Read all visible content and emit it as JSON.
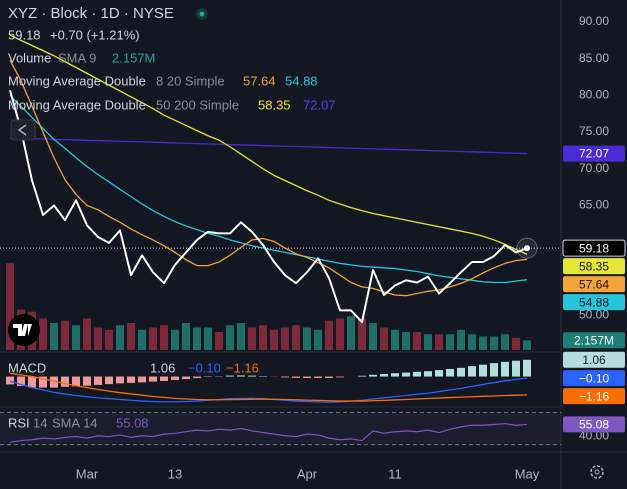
{
  "chart_data": [
    {
      "type": "line",
      "title": "XYZ · Block · 1D · NYSE",
      "change": "+0.70 (+1.21%)",
      "categories": [
        null,
        null,
        null,
        null,
        null,
        null,
        null,
        "Mar",
        null,
        null,
        null,
        null,
        null,
        null,
        null,
        "13",
        null,
        null,
        null,
        null,
        null,
        null,
        null,
        null,
        null,
        null,
        null,
        "Apr",
        null,
        null,
        null,
        null,
        null,
        null,
        null,
        "11",
        null,
        null,
        null,
        null,
        null,
        null,
        null,
        null,
        null,
        null,
        null,
        "May"
      ],
      "ylim": [
        45.3,
        93
      ],
      "yticks": [
        {
          "value": 50,
          "label": "50.00"
        },
        {
          "value": 65,
          "label": "65.00"
        },
        {
          "value": 70,
          "label": "70.00"
        },
        {
          "value": 75,
          "label": "75.00"
        },
        {
          "value": 80,
          "label": "80.00"
        },
        {
          "value": 85,
          "label": "85.00"
        },
        {
          "value": 90,
          "label": "90.00"
        }
      ],
      "grid": false,
      "legends": [
        {
          "name": "Moving Average Double",
          "params": "8 20 Simple"
        },
        {
          "name": "Moving Average Double",
          "params": "50 200 Simple"
        }
      ],
      "series": [
        {
          "color": "#ffffff",
          "values": [
            80.7,
            75.3,
            68.4,
            63.7,
            65.0,
            63.0,
            65.7,
            62.3,
            60.7,
            59.9,
            61.6,
            55.5,
            58.2,
            55.9,
            54.4,
            56.9,
            58.6,
            60.3,
            61.4,
            61.2,
            61.2,
            62.7,
            61.4,
            59.6,
            57.3,
            55.5,
            54.4,
            55.9,
            57.8,
            55.1,
            50.7,
            50.7,
            49.1,
            56.2,
            52.8,
            54.1,
            54.8,
            54.5,
            55.3,
            53.0,
            54.4,
            55.9,
            57.3,
            57.3,
            58.1,
            59.6,
            58.6,
            59.18
          ]
        },
        {
          "color": "#f2a33a",
          "values": [
            84.8,
            82,
            78.5,
            75,
            71.5,
            68.5,
            66.5,
            65,
            64.4,
            63.5,
            62.7,
            61.8,
            61,
            60.3,
            59.5,
            58.6,
            57.6,
            56.8,
            56.8,
            57.3,
            58.2,
            59.3,
            60.3,
            60.5,
            60.1,
            59.2,
            58.4,
            57.9,
            57.2,
            56.5,
            55.5,
            54.5,
            53.9,
            53.7,
            53.2,
            52.8,
            52.7,
            53,
            53.3,
            53.5,
            53.9,
            54.4,
            55,
            55.8,
            56.5,
            57.1,
            57.5,
            57.64
          ]
        },
        {
          "color": "#26c6da",
          "values": [
            80,
            78.5,
            77,
            75.5,
            74,
            72.8,
            71.5,
            70.3,
            69.2,
            68.2,
            67.2,
            66.2,
            65.2,
            64.3,
            63.5,
            62.8,
            62.2,
            61.7,
            61.2,
            60.8,
            60.3,
            59.9,
            59.5,
            59.2,
            58.9,
            58.6,
            58.3,
            58,
            57.7,
            57.4,
            57.1,
            56.9,
            56.7,
            56.6,
            56.5,
            56.4,
            56.2,
            56,
            55.7,
            55.4,
            55.2,
            55,
            54.8,
            54.6,
            54.5,
            54.5,
            54.7,
            54.88
          ]
        },
        {
          "color": "#e6e63a",
          "values": [
            88.2,
            87.5,
            86.8,
            86.1,
            85.4,
            84.6,
            83.8,
            83,
            82.2,
            81.4,
            80.6,
            79.8,
            79,
            78.2,
            77.3,
            76.6,
            75.9,
            75.2,
            74.5,
            73.9,
            73,
            72,
            71,
            70,
            69.1,
            68.4,
            67.7,
            67,
            66.4,
            65.7,
            65.2,
            64.7,
            64.3,
            63.9,
            63.6,
            63.3,
            63,
            62.7,
            62.4,
            62.1,
            61.8,
            61.5,
            61.2,
            60.8,
            60.3,
            59.7,
            59,
            58.35
          ]
        },
        {
          "color": "#4a2bd6",
          "values": [
            74.2,
            74.15,
            74.11,
            74.06,
            74.02,
            73.97,
            73.93,
            73.88,
            73.84,
            73.79,
            73.75,
            73.7,
            73.66,
            73.61,
            73.57,
            73.52,
            73.48,
            73.43,
            73.39,
            73.34,
            73.3,
            73.25,
            73.21,
            73.16,
            73.12,
            73.07,
            73.03,
            72.98,
            72.94,
            72.89,
            72.85,
            72.8,
            72.76,
            72.71,
            72.67,
            72.62,
            72.58,
            72.53,
            72.49,
            72.44,
            72.4,
            72.35,
            72.31,
            72.26,
            72.22,
            72.16,
            72.11,
            72.07
          ]
        }
      ],
      "volume": {
        "name": "Volume",
        "params": "SMA 9",
        "ylim": [
          0,
          20
        ],
        "up_color": "#1f6f68",
        "down_color": "#7c2a3a",
        "badge_color": "#1e7f78",
        "values": [
          19.3,
          9,
          8.5,
          7,
          6,
          6.5,
          5.5,
          7,
          5,
          4.5,
          5.5,
          6,
          4.5,
          5,
          5.5,
          4.5,
          6,
          5,
          5,
          4,
          5.5,
          6,
          5,
          5.5,
          4.5,
          5,
          5.5,
          5,
          4.5,
          6.5,
          7,
          7.5,
          7,
          6,
          5,
          4.5,
          4,
          4,
          3.5,
          3.5,
          3.5,
          4.5,
          3.5,
          3,
          3,
          3.5,
          2.7,
          2.157
        ],
        "value_labels": {
          "47": "2.157M"
        }
      }
    },
    {
      "type": "macd",
      "title": "MACD",
      "ylim": [
        -1.8,
        1.3
      ],
      "series": [
        {
          "color": "#b2dfdb",
          "negative_color": "#ef9a9a",
          "values": [
            -0.5,
            -0.6,
            -0.7,
            -0.7,
            -0.7,
            -0.65,
            -0.62,
            -0.58,
            -0.53,
            -0.48,
            -0.43,
            -0.4,
            -0.37,
            -0.32,
            -0.28,
            -0.22,
            -0.16,
            -0.1,
            -0.03,
            0.02,
            0.06,
            0.07,
            0.06,
            0.03,
            -0.01,
            -0.05,
            -0.08,
            -0.09,
            -0.09,
            -0.09,
            -0.05,
            0,
            0.05,
            0.11,
            0.16,
            0.21,
            0.25,
            0.3,
            0.34,
            0.41,
            0.48,
            0.55,
            0.66,
            0.75,
            0.85,
            0.93,
            1.0,
            1.06
          ]
        },
        {
          "color": "#2962ff",
          "values": [
            -0.3,
            -0.5,
            -0.7,
            -0.85,
            -1.0,
            -1.1,
            -1.2,
            -1.28,
            -1.35,
            -1.4,
            -1.45,
            -1.5,
            -1.55,
            -1.58,
            -1.6,
            -1.6,
            -1.58,
            -1.55,
            -1.5,
            -1.45,
            -1.4,
            -1.38,
            -1.38,
            -1.4,
            -1.45,
            -1.5,
            -1.55,
            -1.58,
            -1.6,
            -1.62,
            -1.6,
            -1.55,
            -1.5,
            -1.42,
            -1.35,
            -1.27,
            -1.2,
            -1.12,
            -1.05,
            -0.95,
            -0.85,
            -0.75,
            -0.62,
            -0.5,
            -0.38,
            -0.27,
            -0.18,
            -0.1
          ],
          "value_labels": {
            "47": "−0.10"
          }
        },
        {
          "color": "#ff6d00",
          "values": [
            0.2,
            0.1,
            0,
            -0.15,
            -0.3,
            -0.45,
            -0.58,
            -0.7,
            -0.82,
            -0.92,
            -1.02,
            -1.1,
            -1.18,
            -1.26,
            -1.32,
            -1.38,
            -1.42,
            -1.45,
            -1.47,
            -1.47,
            -1.46,
            -1.45,
            -1.44,
            -1.43,
            -1.44,
            -1.45,
            -1.47,
            -1.49,
            -1.51,
            -1.53,
            -1.55,
            -1.55,
            -1.55,
            -1.53,
            -1.51,
            -1.48,
            -1.45,
            -1.42,
            -1.39,
            -1.36,
            -1.33,
            -1.3,
            -1.28,
            -1.25,
            -1.23,
            -1.2,
            -1.18,
            -1.16
          ],
          "value_labels": {
            "47": "−1.16"
          }
        }
      ]
    },
    {
      "type": "rsi",
      "title": "RSI",
      "params": [
        "14",
        "SMA 14"
      ],
      "ylim": [
        27,
        73
      ],
      "yticks": [
        {
          "value": 40,
          "label": "40.00"
        }
      ],
      "bands": [
        30,
        70
      ],
      "series": [
        {
          "color": "#7e57c2",
          "values": [
            33,
            35,
            36,
            38,
            37,
            39,
            40,
            38,
            41,
            40,
            42,
            39,
            41,
            40,
            43,
            44,
            46,
            48,
            47,
            49,
            48,
            50,
            47,
            45,
            43,
            41,
            40,
            43,
            42,
            38,
            36,
            37,
            35,
            47,
            44,
            46,
            47,
            46,
            48,
            45,
            49,
            52,
            54,
            54,
            55,
            56,
            54,
            55.08
          ]
        }
      ]
    }
  ]
}
